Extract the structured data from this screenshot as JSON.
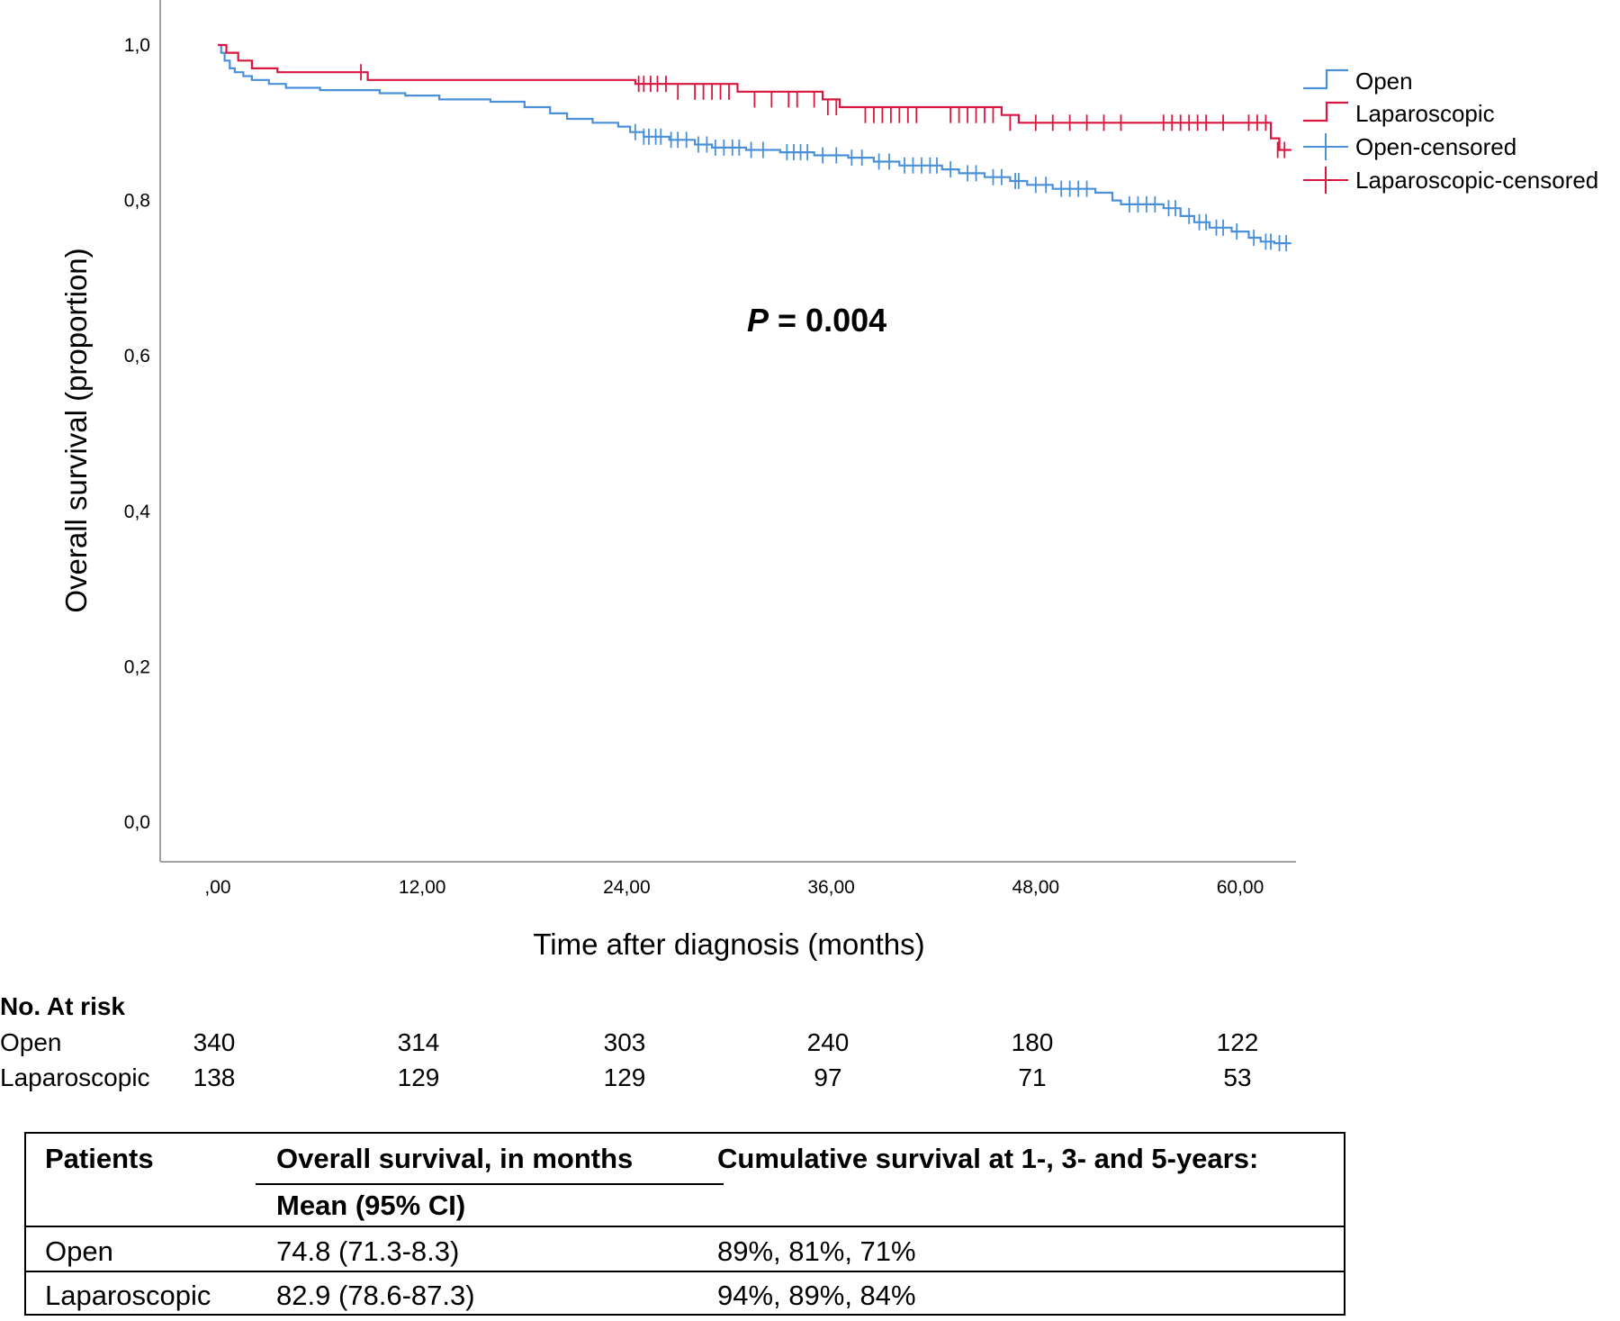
{
  "chart_data": {
    "type": "line",
    "subtype": "kaplan-meier",
    "xlabel": "Time after diagnosis (months)",
    "ylabel": "Overall survival (proportion)",
    "xlim": [
      0,
      63
    ],
    "ylim": [
      0,
      1.05
    ],
    "x_ticks": [
      {
        "value": 0,
        "label": ",00"
      },
      {
        "value": 12,
        "label": "12,00"
      },
      {
        "value": 24,
        "label": "24,00"
      },
      {
        "value": 36,
        "label": "36,00"
      },
      {
        "value": 48,
        "label": "48,00"
      },
      {
        "value": 60,
        "label": "60,00"
      }
    ],
    "y_ticks": [
      {
        "value": 0.0,
        "label": "0,0"
      },
      {
        "value": 0.2,
        "label": "0,2"
      },
      {
        "value": 0.4,
        "label": "0,4"
      },
      {
        "value": 0.6,
        "label": "0,6"
      },
      {
        "value": 0.8,
        "label": "0,8"
      },
      {
        "value": 1.0,
        "label": "1,0"
      }
    ],
    "legend_position": "top-right",
    "legend": [
      {
        "label": "Open",
        "kind": "line",
        "color": "#4a90d9"
      },
      {
        "label": "Laparoscopic",
        "kind": "line",
        "color": "#d9163f"
      },
      {
        "label": "Open-censored",
        "kind": "censor",
        "color": "#4a90d9"
      },
      {
        "label": "Laparoscopic-censored",
        "kind": "censor",
        "color": "#d9163f"
      }
    ],
    "annotation": {
      "italic": "P",
      "text": " = 0.004"
    },
    "series": [
      {
        "color": "#4a90d9",
        "steps": [
          [
            0,
            1.0
          ],
          [
            0.2,
            0.99
          ],
          [
            0.4,
            0.98
          ],
          [
            0.7,
            0.97
          ],
          [
            1.0,
            0.965
          ],
          [
            1.5,
            0.96
          ],
          [
            2.0,
            0.955
          ],
          [
            3.0,
            0.95
          ],
          [
            4.0,
            0.945
          ],
          [
            6.0,
            0.942
          ],
          [
            9.5,
            0.938
          ],
          [
            11.0,
            0.935
          ],
          [
            13.0,
            0.93
          ],
          [
            16.0,
            0.927
          ],
          [
            18.0,
            0.92
          ],
          [
            19.5,
            0.912
          ],
          [
            20.5,
            0.905
          ],
          [
            22.0,
            0.9
          ],
          [
            23.5,
            0.895
          ],
          [
            24.2,
            0.888
          ],
          [
            25.0,
            0.882
          ],
          [
            26.5,
            0.878
          ],
          [
            28.0,
            0.872
          ],
          [
            29.0,
            0.868
          ],
          [
            31.0,
            0.865
          ],
          [
            33.0,
            0.862
          ],
          [
            35.0,
            0.858
          ],
          [
            37.0,
            0.855
          ],
          [
            38.5,
            0.85
          ],
          [
            40.0,
            0.845
          ],
          [
            42.5,
            0.84
          ],
          [
            43.5,
            0.835
          ],
          [
            45.0,
            0.83
          ],
          [
            46.5,
            0.825
          ],
          [
            47.5,
            0.82
          ],
          [
            49.0,
            0.815
          ],
          [
            51.5,
            0.81
          ],
          [
            52.5,
            0.8
          ],
          [
            53.0,
            0.795
          ],
          [
            55.5,
            0.79
          ],
          [
            56.5,
            0.78
          ],
          [
            57.3,
            0.772
          ],
          [
            58.2,
            0.765
          ],
          [
            59.5,
            0.76
          ],
          [
            60.5,
            0.752
          ],
          [
            61.2,
            0.747
          ],
          [
            62.0,
            0.745
          ],
          [
            63.0,
            0.745
          ]
        ],
        "censored": [
          [
            24.5,
            0.888
          ],
          [
            25.0,
            0.882
          ],
          [
            25.3,
            0.882
          ],
          [
            25.7,
            0.882
          ],
          [
            26.0,
            0.882
          ],
          [
            26.6,
            0.878
          ],
          [
            27.0,
            0.878
          ],
          [
            27.5,
            0.878
          ],
          [
            28.2,
            0.872
          ],
          [
            28.7,
            0.872
          ],
          [
            29.2,
            0.868
          ],
          [
            29.7,
            0.868
          ],
          [
            30.2,
            0.868
          ],
          [
            30.6,
            0.868
          ],
          [
            31.3,
            0.865
          ],
          [
            32.0,
            0.865
          ],
          [
            33.4,
            0.862
          ],
          [
            33.8,
            0.862
          ],
          [
            34.2,
            0.862
          ],
          [
            34.6,
            0.862
          ],
          [
            35.5,
            0.858
          ],
          [
            36.3,
            0.858
          ],
          [
            37.2,
            0.855
          ],
          [
            37.8,
            0.855
          ],
          [
            38.8,
            0.85
          ],
          [
            39.4,
            0.85
          ],
          [
            40.3,
            0.845
          ],
          [
            40.8,
            0.845
          ],
          [
            41.3,
            0.845
          ],
          [
            41.8,
            0.845
          ],
          [
            42.2,
            0.845
          ],
          [
            43.0,
            0.84
          ],
          [
            44.0,
            0.835
          ],
          [
            44.5,
            0.835
          ],
          [
            45.5,
            0.83
          ],
          [
            46.0,
            0.83
          ],
          [
            46.8,
            0.825
          ],
          [
            47.0,
            0.825
          ],
          [
            48.0,
            0.82
          ],
          [
            48.6,
            0.82
          ],
          [
            49.5,
            0.815
          ],
          [
            50.0,
            0.815
          ],
          [
            50.5,
            0.815
          ],
          [
            51.0,
            0.815
          ],
          [
            53.5,
            0.795
          ],
          [
            54.0,
            0.795
          ],
          [
            54.5,
            0.795
          ],
          [
            55.0,
            0.795
          ],
          [
            55.8,
            0.79
          ],
          [
            56.2,
            0.79
          ],
          [
            57.0,
            0.78
          ],
          [
            57.6,
            0.772
          ],
          [
            58.0,
            0.772
          ],
          [
            58.6,
            0.765
          ],
          [
            59.0,
            0.765
          ],
          [
            59.8,
            0.76
          ],
          [
            60.8,
            0.752
          ],
          [
            61.5,
            0.747
          ],
          [
            61.8,
            0.747
          ],
          [
            62.3,
            0.745
          ],
          [
            62.7,
            0.745
          ]
        ]
      },
      {
        "color": "#d9163f",
        "steps": [
          [
            0,
            1.0
          ],
          [
            0.5,
            0.99
          ],
          [
            1.2,
            0.98
          ],
          [
            2.0,
            0.97
          ],
          [
            3.5,
            0.965
          ],
          [
            8.8,
            0.955
          ],
          [
            24.5,
            0.95
          ],
          [
            30.5,
            0.94
          ],
          [
            35.5,
            0.93
          ],
          [
            36.5,
            0.92
          ],
          [
            46.0,
            0.91
          ],
          [
            47.0,
            0.9
          ],
          [
            61.8,
            0.88
          ],
          [
            62.3,
            0.865
          ],
          [
            63.0,
            0.865
          ]
        ],
        "censored": [
          [
            8.4,
            0.965
          ],
          [
            24.7,
            0.95
          ],
          [
            25.0,
            0.95
          ],
          [
            25.4,
            0.95
          ],
          [
            25.8,
            0.95
          ],
          [
            26.3,
            0.95
          ],
          [
            27.0,
            0.94
          ],
          [
            28.0,
            0.94
          ],
          [
            28.5,
            0.94
          ],
          [
            29.0,
            0.94
          ],
          [
            29.5,
            0.94
          ],
          [
            30.0,
            0.94
          ],
          [
            31.5,
            0.93
          ],
          [
            32.5,
            0.93
          ],
          [
            33.5,
            0.93
          ],
          [
            34.0,
            0.93
          ],
          [
            35.0,
            0.93
          ],
          [
            35.8,
            0.92
          ],
          [
            36.3,
            0.92
          ],
          [
            38.0,
            0.91
          ],
          [
            38.5,
            0.91
          ],
          [
            39.0,
            0.91
          ],
          [
            39.5,
            0.91
          ],
          [
            40.0,
            0.91
          ],
          [
            40.5,
            0.91
          ],
          [
            41.0,
            0.91
          ],
          [
            43.0,
            0.91
          ],
          [
            43.5,
            0.91
          ],
          [
            44.0,
            0.91
          ],
          [
            44.5,
            0.91
          ],
          [
            45.0,
            0.91
          ],
          [
            45.5,
            0.91
          ],
          [
            46.5,
            0.9
          ],
          [
            48.0,
            0.9
          ],
          [
            49.0,
            0.9
          ],
          [
            50.0,
            0.9
          ],
          [
            51.0,
            0.9
          ],
          [
            52.0,
            0.9
          ],
          [
            53.0,
            0.9
          ],
          [
            55.5,
            0.9
          ],
          [
            56.0,
            0.9
          ],
          [
            56.5,
            0.9
          ],
          [
            57.0,
            0.9
          ],
          [
            57.5,
            0.9
          ],
          [
            58.0,
            0.9
          ],
          [
            59.0,
            0.9
          ],
          [
            60.5,
            0.9
          ],
          [
            61.0,
            0.9
          ],
          [
            61.5,
            0.9
          ],
          [
            62.2,
            0.865
          ],
          [
            62.6,
            0.865
          ]
        ]
      }
    ]
  },
  "risk_table": {
    "title": "No. At risk",
    "rows": [
      {
        "label": "Open",
        "values": [
          "340",
          "314",
          "303",
          "240",
          "180",
          "122"
        ]
      },
      {
        "label": "Laparoscopic",
        "values": [
          "138",
          "129",
          "129",
          "97",
          "71",
          "53"
        ]
      }
    ]
  },
  "summary_table": {
    "col1_header": "Patients",
    "col2_header": "Overall survival, in months",
    "col2_subheader": "Mean (95% CI)",
    "col3_header": "Cumulative survival at 1-, 3- and 5-years:",
    "rows": [
      {
        "patients": "Open",
        "mean": "74.8 (71.3-8.3)",
        "cumulative": "89%, 81%, 71%"
      },
      {
        "patients": "Laparoscopic",
        "mean": "82.9 (78.6-87.3)",
        "cumulative": "94%, 89%, 84%"
      }
    ]
  }
}
